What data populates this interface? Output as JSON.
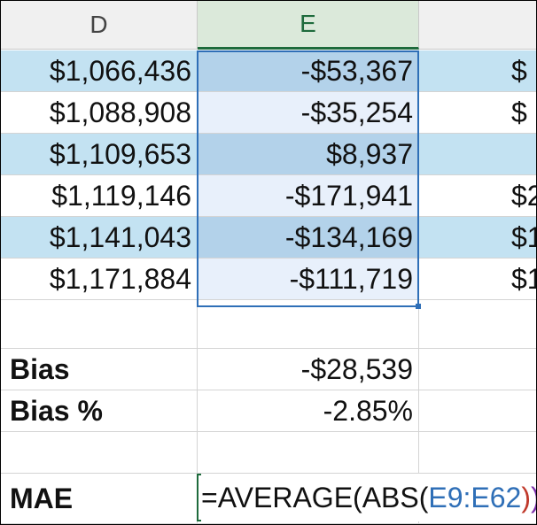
{
  "columns": {
    "d": "D",
    "e": "E"
  },
  "rows": [
    {
      "d": "$1,066,436",
      "e": "-$53,367",
      "f": "$"
    },
    {
      "d": "$1,088,908",
      "e": "-$35,254",
      "f": "$"
    },
    {
      "d": "$1,109,653",
      "e": "$8,937",
      "f": ""
    },
    {
      "d": "$1,119,146",
      "e": "-$171,941",
      "f": "$2"
    },
    {
      "d": "$1,141,043",
      "e": "-$134,169",
      "f": "$1"
    },
    {
      "d": "$1,171,884",
      "e": "-$111,719",
      "f": "$1"
    }
  ],
  "summary": {
    "bias_label": "Bias",
    "bias_value": "-$28,539",
    "bias_pct_label": "Bias %",
    "bias_pct_value": "-2.85%",
    "mae_label": "MAE"
  },
  "formula": {
    "prefix": "=AVERAGE(ABS(",
    "range": "E9:E62",
    "close_inner": ")",
    "close_outer": ")",
    "range_color": "#2f6fb7",
    "inner_paren_color": "#c0392b",
    "outer_paren_color": "#7b2fa8"
  },
  "colors": {
    "band": "#c3e2f2",
    "selection": "#2f6fb7",
    "edit_border": "#1e6b3c",
    "header_bg": "#f0f0f0",
    "selected_header_bg": "#dbe9da"
  }
}
